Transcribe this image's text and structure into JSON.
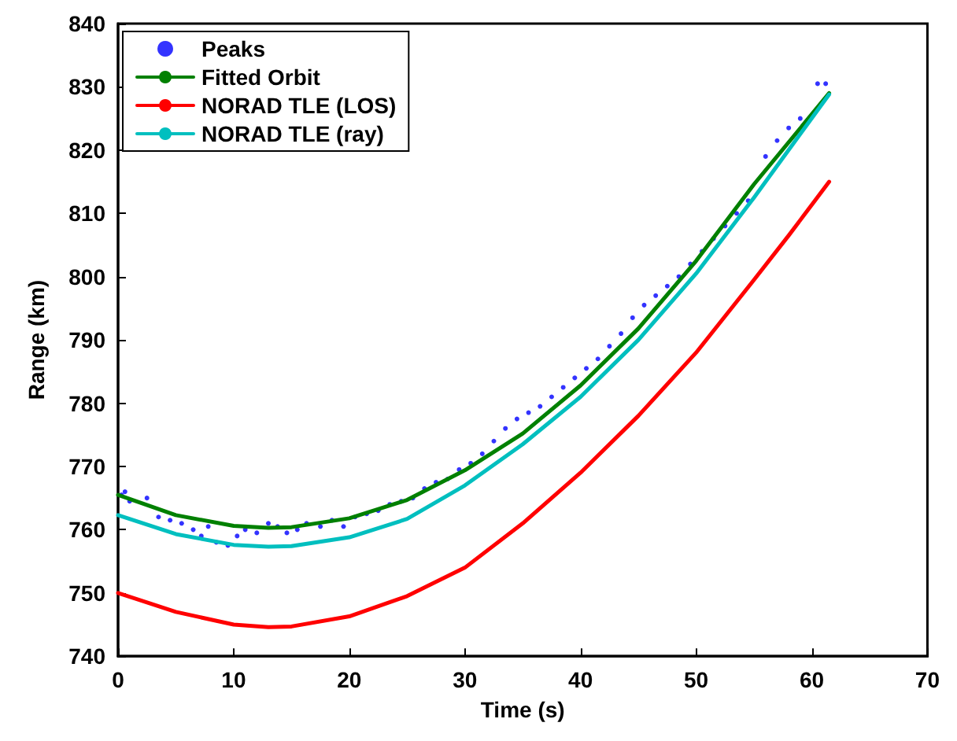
{
  "chart_data": {
    "type": "line",
    "xlabel": "Time (s)",
    "ylabel": "Range (km)",
    "xlim": [
      0,
      70
    ],
    "xticks": [
      0,
      10,
      20,
      30,
      40,
      50,
      60,
      70
    ],
    "ylim": [
      740,
      840
    ],
    "yticks": [
      740,
      750,
      760,
      770,
      780,
      790,
      800,
      810,
      820,
      830,
      840
    ],
    "grid": false,
    "legend": "top left",
    "series": [
      {
        "name": "Peaks",
        "type": "scatter",
        "marker": "circle",
        "color": "#0000ff",
        "x": [
          0.3,
          0.6,
          1,
          2.5,
          3.5,
          4.5,
          5.5,
          6.5,
          7.2,
          7.8,
          8.5,
          9.5,
          10.3,
          11,
          12,
          13,
          13.8,
          14.6,
          15.5,
          16.3,
          17.5,
          18.5,
          19.5,
          20.5,
          21.5,
          22.5,
          23.5,
          24.5,
          25.5,
          26.5,
          27.5,
          28.5,
          29.5,
          30.5,
          31.5,
          32.5,
          33.5,
          34.5,
          35.5,
          36.5,
          37.5,
          38.5,
          39.5,
          40.5,
          41.5,
          42.5,
          43.5,
          44.5,
          45.5,
          46.5,
          47.5,
          48.5,
          49.5,
          50.5,
          51.5,
          52.5,
          53.5,
          54.5,
          56,
          57,
          58,
          59,
          60.5,
          61.2
        ],
        "values": [
          765.5,
          766,
          764.5,
          765,
          762,
          761.5,
          761,
          760,
          759,
          760.5,
          758,
          757.5,
          759,
          760,
          759.5,
          761,
          760.5,
          759.5,
          760,
          761,
          760.5,
          761.5,
          760.5,
          762,
          762.5,
          763,
          764,
          764.5,
          765,
          766.5,
          767.5,
          768,
          769.5,
          770.5,
          772,
          774,
          776,
          777.5,
          778.5,
          779.5,
          781,
          782.5,
          784,
          785.5,
          787,
          789,
          791,
          793.5,
          795.5,
          797,
          798.5,
          800,
          802,
          804,
          806,
          808,
          810,
          812,
          819,
          821.5,
          823.5,
          825,
          830.5,
          830.5
        ]
      },
      {
        "name": "Fitted Orbit",
        "color": "#008000",
        "x": [
          0,
          5,
          10,
          13,
          15,
          20,
          25,
          30,
          35,
          40,
          45,
          50,
          55,
          61.5
        ],
        "values": [
          765.5,
          762.3,
          760.6,
          760.3,
          760.4,
          761.8,
          764.7,
          769.4,
          775.2,
          782.8,
          791.8,
          802.5,
          814.6,
          829
        ]
      },
      {
        "name": "NORAD TLE (LOS)",
        "color": "#ff0000",
        "x": [
          0,
          5,
          10,
          13,
          15,
          20,
          25,
          30,
          35,
          40,
          45,
          50,
          55,
          58,
          61.5
        ],
        "values": [
          750,
          747,
          745,
          744.6,
          744.7,
          746.3,
          749.5,
          754,
          761,
          769,
          778,
          788,
          799.5,
          806.5,
          815
        ]
      },
      {
        "name": "NORAD TLE (ray)",
        "color": "#00bfbf",
        "x": [
          0,
          5,
          10,
          13,
          15,
          20,
          25,
          30,
          35,
          40,
          45,
          50,
          55,
          61.5
        ],
        "values": [
          762.3,
          759.3,
          757.6,
          757.3,
          757.4,
          758.8,
          761.7,
          767,
          773.5,
          781,
          790,
          800.5,
          812.5,
          828.8
        ]
      }
    ]
  }
}
